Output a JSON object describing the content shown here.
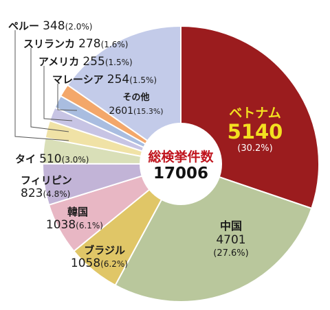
{
  "chart_data": {
    "type": "pie",
    "donut": true,
    "center_title": "総検挙件数",
    "total": "17006",
    "slices": [
      {
        "name": "ベトナム",
        "value": 5140,
        "value_text": "5140",
        "pct_text": "(30.2%)",
        "color": "#9b1c1e"
      },
      {
        "name": "中国",
        "value": 4701,
        "value_text": "4701",
        "pct_text": "(27.6%)",
        "color": "#b9c79c"
      },
      {
        "name": "ブラジル",
        "value": 1058,
        "value_text": "1058",
        "pct_text": "(6.2%)",
        "color": "#e0c667"
      },
      {
        "name": "韓国",
        "value": 1038,
        "value_text": "1038",
        "pct_text": "(6.1%)",
        "color": "#e8b7c4"
      },
      {
        "name": "フィリピン",
        "value": 823,
        "value_text": "823",
        "pct_text": "(4.8%)",
        "color": "#c2b4d7"
      },
      {
        "name": "タイ",
        "value": 510,
        "value_text": "510",
        "pct_text": "(3.0%)",
        "color": "#d9dfb8"
      },
      {
        "name": "ペルー",
        "value": 348,
        "value_text": "348",
        "pct_text": "(2.0%)",
        "color": "#f0e2a6"
      },
      {
        "name": "スリランカ",
        "value": 278,
        "value_text": "278",
        "pct_text": "(1.6%)",
        "color": "#c7c4e4"
      },
      {
        "name": "アメリカ",
        "value": 255,
        "value_text": "255",
        "pct_text": "(1.5%)",
        "color": "#a9bde0"
      },
      {
        "name": "マレーシア",
        "value": 254,
        "value_text": "254",
        "pct_text": "(1.5%)",
        "color": "#f3a76a"
      },
      {
        "name": "その他",
        "value": 2601,
        "value_text": "2601",
        "pct_text": "(15.3%)",
        "color": "#c3cbe9"
      }
    ]
  }
}
